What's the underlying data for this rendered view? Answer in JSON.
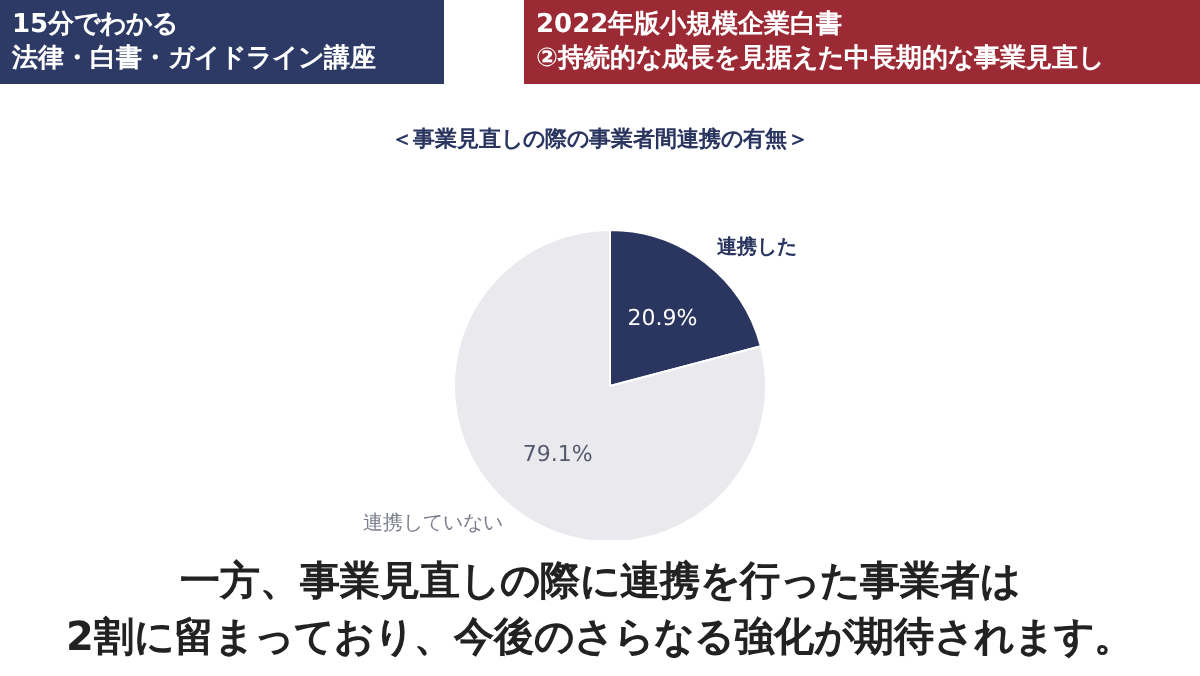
{
  "chart_data": {
    "type": "pie",
    "title": "＜事業見直しの際の事業者間連携の有無＞",
    "categories": [
      "連携した",
      "連携していない"
    ],
    "values": [
      20.9,
      79.1
    ],
    "value_labels": [
      "20.9%",
      "79.1%"
    ],
    "colors": [
      "#2b3660",
      "#e9e9ee"
    ],
    "annotations": [
      "15分でわかる",
      "法律・白書・ガイドライン講座",
      "2022年版小規模企業白書",
      "②持続的な成長を見据えた中長期的な事業見直し",
      "一方、事業見直しの際に連携を行った事業者は",
      "2割に留まっており、今後のさらなる強化が期待されます。"
    ]
  }
}
